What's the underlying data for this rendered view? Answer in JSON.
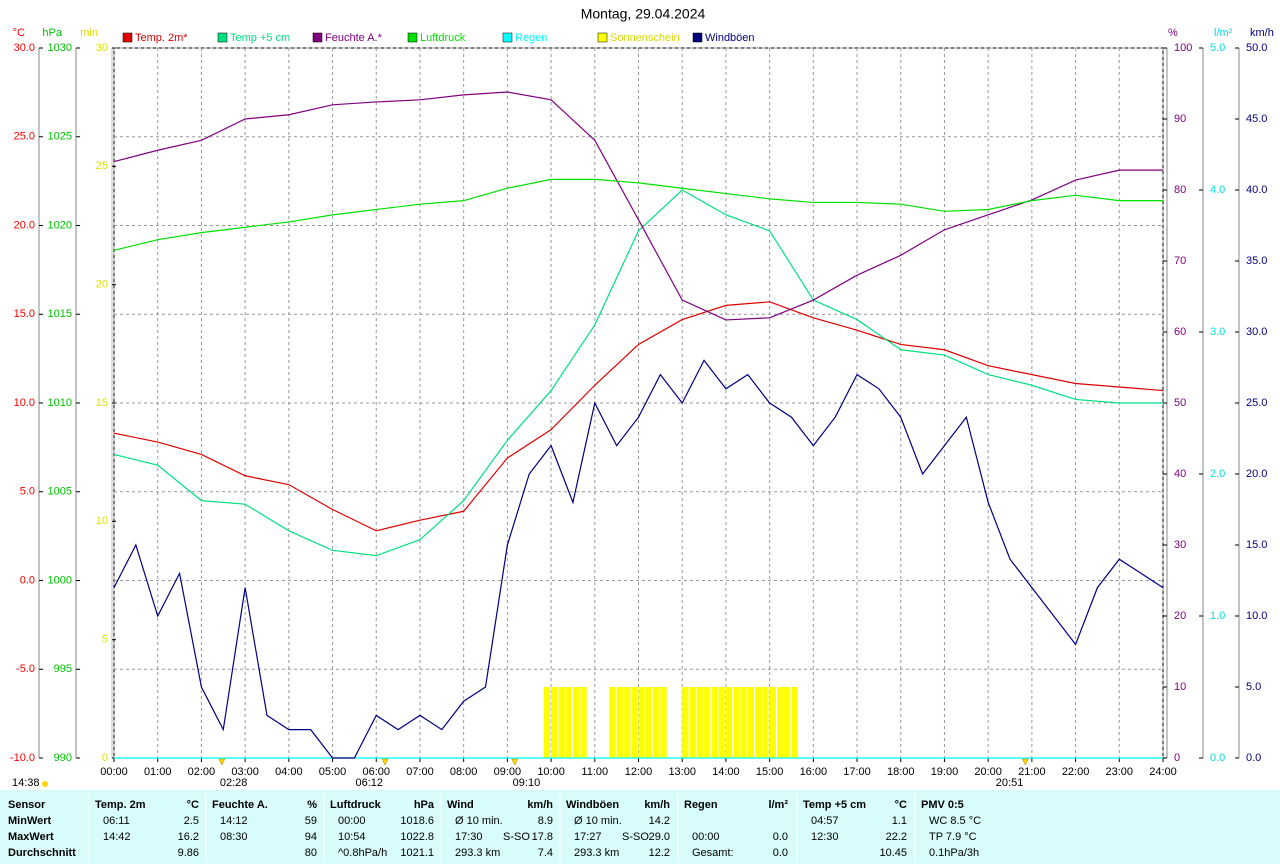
{
  "chart_data": {
    "type": "line",
    "title": "Montag, 29.04.2024",
    "grid": true,
    "x": [
      0,
      1,
      2,
      3,
      4,
      5,
      6,
      7,
      8,
      9,
      10,
      11,
      12,
      13,
      14,
      15,
      16,
      17,
      18,
      19,
      20,
      21,
      22,
      23,
      24
    ],
    "xlim": [
      0,
      24
    ],
    "xticks": [
      {
        "value": 0,
        "label": "00:00"
      },
      {
        "value": 1,
        "label": "01:00"
      },
      {
        "value": 2,
        "label": "02:00"
      },
      {
        "value": 3,
        "label": "03:00"
      },
      {
        "value": 4,
        "label": "04:00"
      },
      {
        "value": 5,
        "label": "05:00"
      },
      {
        "value": 6,
        "label": "06:00"
      },
      {
        "value": 7,
        "label": "07:00"
      },
      {
        "value": 8,
        "label": "08:00"
      },
      {
        "value": 9,
        "label": "09:00"
      },
      {
        "value": 10,
        "label": "10:00"
      },
      {
        "value": 11,
        "label": "11:00"
      },
      {
        "value": 12,
        "label": "12:00"
      },
      {
        "value": 13,
        "label": "13:00"
      },
      {
        "value": 14,
        "label": "14:00"
      },
      {
        "value": 15,
        "label": "15:00"
      },
      {
        "value": 16,
        "label": "16:00"
      },
      {
        "value": 17,
        "label": "17:00"
      },
      {
        "value": 18,
        "label": "18:00"
      },
      {
        "value": 19,
        "label": "19:00"
      },
      {
        "value": 20,
        "label": "20:00"
      },
      {
        "value": 21,
        "label": "21:00"
      },
      {
        "value": 22,
        "label": "22:00"
      },
      {
        "value": 23,
        "label": "23:00"
      },
      {
        "value": 24,
        "label": "24:00"
      }
    ],
    "axes": [
      {
        "id": "c",
        "label": "°C",
        "side": "left",
        "color": "#ff0000",
        "lim": [
          -10,
          30
        ],
        "ticks": [
          {
            "value": -10,
            "label": "-10.0"
          },
          {
            "value": -5,
            "label": "-5.0"
          },
          {
            "value": 0,
            "label": "0.0"
          },
          {
            "value": 5,
            "label": "5.0"
          },
          {
            "value": 10,
            "label": "10.0"
          },
          {
            "value": 15,
            "label": "15.0"
          },
          {
            "value": 20,
            "label": "20.0"
          },
          {
            "value": 25,
            "label": "25.0"
          },
          {
            "value": 30,
            "label": "30.0"
          }
        ]
      },
      {
        "id": "hpa",
        "label": "hPa",
        "side": "left",
        "color": "#00c000",
        "lim": [
          990,
          1030
        ],
        "ticks": [
          990,
          995,
          1000,
          1005,
          1010,
          1015,
          1020,
          1025,
          1030
        ]
      },
      {
        "id": "min",
        "label": "min",
        "side": "left",
        "color": "#e0e000",
        "lim": [
          0,
          30
        ],
        "ticks": [
          0,
          5,
          10,
          15,
          20,
          25,
          30
        ]
      },
      {
        "id": "pct",
        "label": "%",
        "side": "right",
        "color": "#800080",
        "lim": [
          0,
          100
        ],
        "ticks": [
          0,
          10,
          20,
          30,
          40,
          50,
          60,
          70,
          80,
          90,
          100
        ]
      },
      {
        "id": "rain",
        "label": "l/m²",
        "side": "right",
        "color": "#00e0e0",
        "lim": [
          0,
          5
        ],
        "ticks": [
          {
            "value": 0,
            "label": "0.0"
          },
          {
            "value": 1,
            "label": "1.0"
          },
          {
            "value": 2,
            "label": "2.0"
          },
          {
            "value": 3,
            "label": "3.0"
          },
          {
            "value": 4,
            "label": "4.0"
          },
          {
            "value": 5,
            "label": "5.0"
          }
        ]
      },
      {
        "id": "kmh",
        "label": "km/h",
        "side": "right",
        "color": "#000080",
        "lim": [
          0,
          50
        ],
        "ticks": [
          {
            "value": 0,
            "label": "0.0"
          },
          {
            "value": 5,
            "label": "5.0"
          },
          {
            "value": 10,
            "label": "10.0"
          },
          {
            "value": 15,
            "label": "15.0"
          },
          {
            "value": 20,
            "label": "20.0"
          },
          {
            "value": 25,
            "label": "25.0"
          },
          {
            "value": 30,
            "label": "30.0"
          },
          {
            "value": 35,
            "label": "35.0"
          },
          {
            "value": 40,
            "label": "40.0"
          },
          {
            "value": 45,
            "label": "45.0"
          },
          {
            "value": 50,
            "label": "50.0"
          }
        ]
      }
    ],
    "series": [
      {
        "name": "Temp. 2m*",
        "color": "#e00000",
        "axis": "c",
        "type": "line",
        "values": [
          8.3,
          7.8,
          7.1,
          5.9,
          5.4,
          4.0,
          2.8,
          3.4,
          3.9,
          6.9,
          8.5,
          11.0,
          13.3,
          14.7,
          15.5,
          15.7,
          14.8,
          14.1,
          13.3,
          13.0,
          12.1,
          11.6,
          11.1,
          10.9,
          10.7
        ]
      },
      {
        "name": "Temp +5 cm",
        "color": "#00e080",
        "axis": "c",
        "type": "line",
        "values": [
          7.1,
          6.5,
          4.5,
          4.3,
          2.8,
          1.7,
          1.4,
          2.3,
          4.5,
          7.9,
          10.7,
          14.4,
          19.7,
          22.0,
          20.6,
          19.7,
          15.8,
          14.7,
          13.0,
          12.7,
          11.6,
          11.0,
          10.2,
          10.0,
          10.0
        ]
      },
      {
        "name": "Feuchte A.*",
        "color": "#800080",
        "axis": "pct",
        "type": "line",
        "values": [
          84,
          85.6,
          87,
          90,
          90.6,
          92,
          92.4,
          92.7,
          93.4,
          93.8,
          92.7,
          87,
          75.8,
          64.5,
          61.7,
          62,
          64.5,
          68,
          70.8,
          74.4,
          76.5,
          78.6,
          81.4,
          82.8,
          82.8
        ]
      },
      {
        "name": "Luftdruck",
        "color": "#00e000",
        "axis": "hpa",
        "type": "line",
        "values": [
          1018.6,
          1019.2,
          1019.6,
          1019.9,
          1020.2,
          1020.6,
          1020.9,
          1021.2,
          1021.4,
          1022.1,
          1022.6,
          1022.6,
          1022.4,
          1022.1,
          1021.8,
          1021.5,
          1021.3,
          1021.3,
          1021.2,
          1020.8,
          1020.9,
          1021.4,
          1021.7,
          1021.4,
          1021.4
        ]
      },
      {
        "name": "Regen",
        "color": "#00ffff",
        "axis": "rain",
        "type": "line",
        "values": [
          0,
          0,
          0,
          0,
          0,
          0,
          0,
          0,
          0,
          0,
          0,
          0,
          0,
          0,
          0,
          0,
          0,
          0,
          0,
          0,
          0,
          0,
          0,
          0,
          0
        ]
      },
      {
        "name": "Sonnenschein",
        "color": "#ffff00",
        "axis": "min",
        "type": "bar",
        "x": [
          9.83,
          10.0,
          10.17,
          10.33,
          10.5,
          10.67,
          11.33,
          11.5,
          11.67,
          11.83,
          12.0,
          12.17,
          12.33,
          12.5,
          13.0,
          13.17,
          13.33,
          13.5,
          13.67,
          13.83,
          14.0,
          14.17,
          14.33,
          14.5,
          14.67,
          14.83,
          15.0,
          15.17,
          15.33,
          15.5
        ],
        "values": [
          3,
          3,
          3,
          3,
          3,
          3,
          3,
          3,
          3,
          3,
          3,
          3,
          3,
          3,
          3,
          3,
          3,
          3,
          3,
          3,
          3,
          3,
          3,
          3,
          3,
          3,
          3,
          3,
          3,
          3
        ]
      },
      {
        "name": "Windböen",
        "color": "#000080",
        "axis": "kmh",
        "type": "line",
        "x": [
          0,
          0.5,
          1,
          1.5,
          2,
          2.5,
          3,
          3.5,
          4,
          4.5,
          5,
          5.5,
          6,
          6.5,
          7,
          7.5,
          8,
          8.5,
          9,
          9.5,
          10,
          10.5,
          11,
          11.5,
          12,
          12.5,
          13,
          13.5,
          14,
          14.5,
          15,
          15.5,
          16,
          16.5,
          17,
          17.5,
          18,
          18.5,
          19,
          19.5,
          20,
          20.5,
          21,
          21.5,
          22,
          22.5,
          23,
          23.5,
          24
        ],
        "values": [
          12,
          15,
          10,
          13,
          5,
          2,
          12,
          3,
          2,
          2,
          0,
          0,
          3,
          2,
          3,
          2,
          4,
          5,
          15,
          20,
          22,
          18,
          25,
          22,
          24,
          27,
          25,
          28,
          26,
          27,
          25,
          24,
          22,
          24,
          27,
          26,
          24,
          20,
          22,
          24,
          18,
          14,
          12,
          10,
          8,
          12,
          14,
          13,
          12
        ]
      }
    ],
    "day_length": "14:38",
    "markers": [
      {
        "value": 2.467,
        "label": "02:28"
      },
      {
        "value": 6.2,
        "label": "06:12"
      },
      {
        "value": 9.167,
        "label": "09:10"
      },
      {
        "value": 20.85,
        "label": "20:51"
      }
    ]
  },
  "stats": {
    "row_labels": [
      "Sensor",
      "MinWert",
      "MaxWert",
      "Durchschnitt"
    ],
    "columns": [
      {
        "title": "Temp. 2m",
        "unit": "°C",
        "cells": [
          [
            "06:11",
            null,
            "2.5"
          ],
          [
            "14:42",
            null,
            "16.2"
          ],
          [
            null,
            null,
            "9.86"
          ]
        ]
      },
      {
        "title": "Feuchte A.",
        "unit": "%",
        "cells": [
          [
            "14:12",
            null,
            "59"
          ],
          [
            "08:30",
            null,
            "94"
          ],
          [
            null,
            null,
            "80"
          ]
        ]
      },
      {
        "title": "Luftdruck",
        "unit": "hPa",
        "cells": [
          [
            "00:00",
            null,
            "1018.6"
          ],
          [
            "10:54",
            null,
            "1022.8"
          ],
          [
            "^0.8hPa/h",
            null,
            "1021.1"
          ]
        ]
      },
      {
        "title": "Wind",
        "unit": "km/h",
        "cells": [
          [
            "Ø 10 min.",
            null,
            "8.9"
          ],
          [
            "17:30",
            "S-SO",
            "17.8"
          ],
          [
            "293.3 km",
            null,
            "7.4"
          ]
        ]
      },
      {
        "title": "Windböen",
        "unit": "km/h",
        "cells": [
          [
            "Ø 10 min.",
            null,
            "14.2"
          ],
          [
            "17:27",
            "S-SO",
            "29.0"
          ],
          [
            "293.3 km",
            null,
            "12.2"
          ]
        ]
      },
      {
        "title": "Regen",
        "unit": "l/m²",
        "cells": [
          [
            null,
            null,
            null
          ],
          [
            "00:00",
            null,
            "0.0"
          ],
          [
            "Gesamt:",
            null,
            "0.0"
          ]
        ]
      },
      {
        "title": "Temp +5 cm",
        "unit": "°C",
        "cells": [
          [
            "04:57",
            null,
            "1.1"
          ],
          [
            "12:30",
            null,
            "22.2"
          ],
          [
            null,
            null,
            "10.45"
          ]
        ]
      },
      {
        "title": "PMV 0:5",
        "unit": null,
        "cells": [
          [
            "WC 8.5 °C",
            null,
            null
          ],
          [
            "TP 7.9 °C",
            null,
            null
          ],
          [
            "0.1hPa/3h",
            null,
            null
          ]
        ]
      }
    ]
  }
}
